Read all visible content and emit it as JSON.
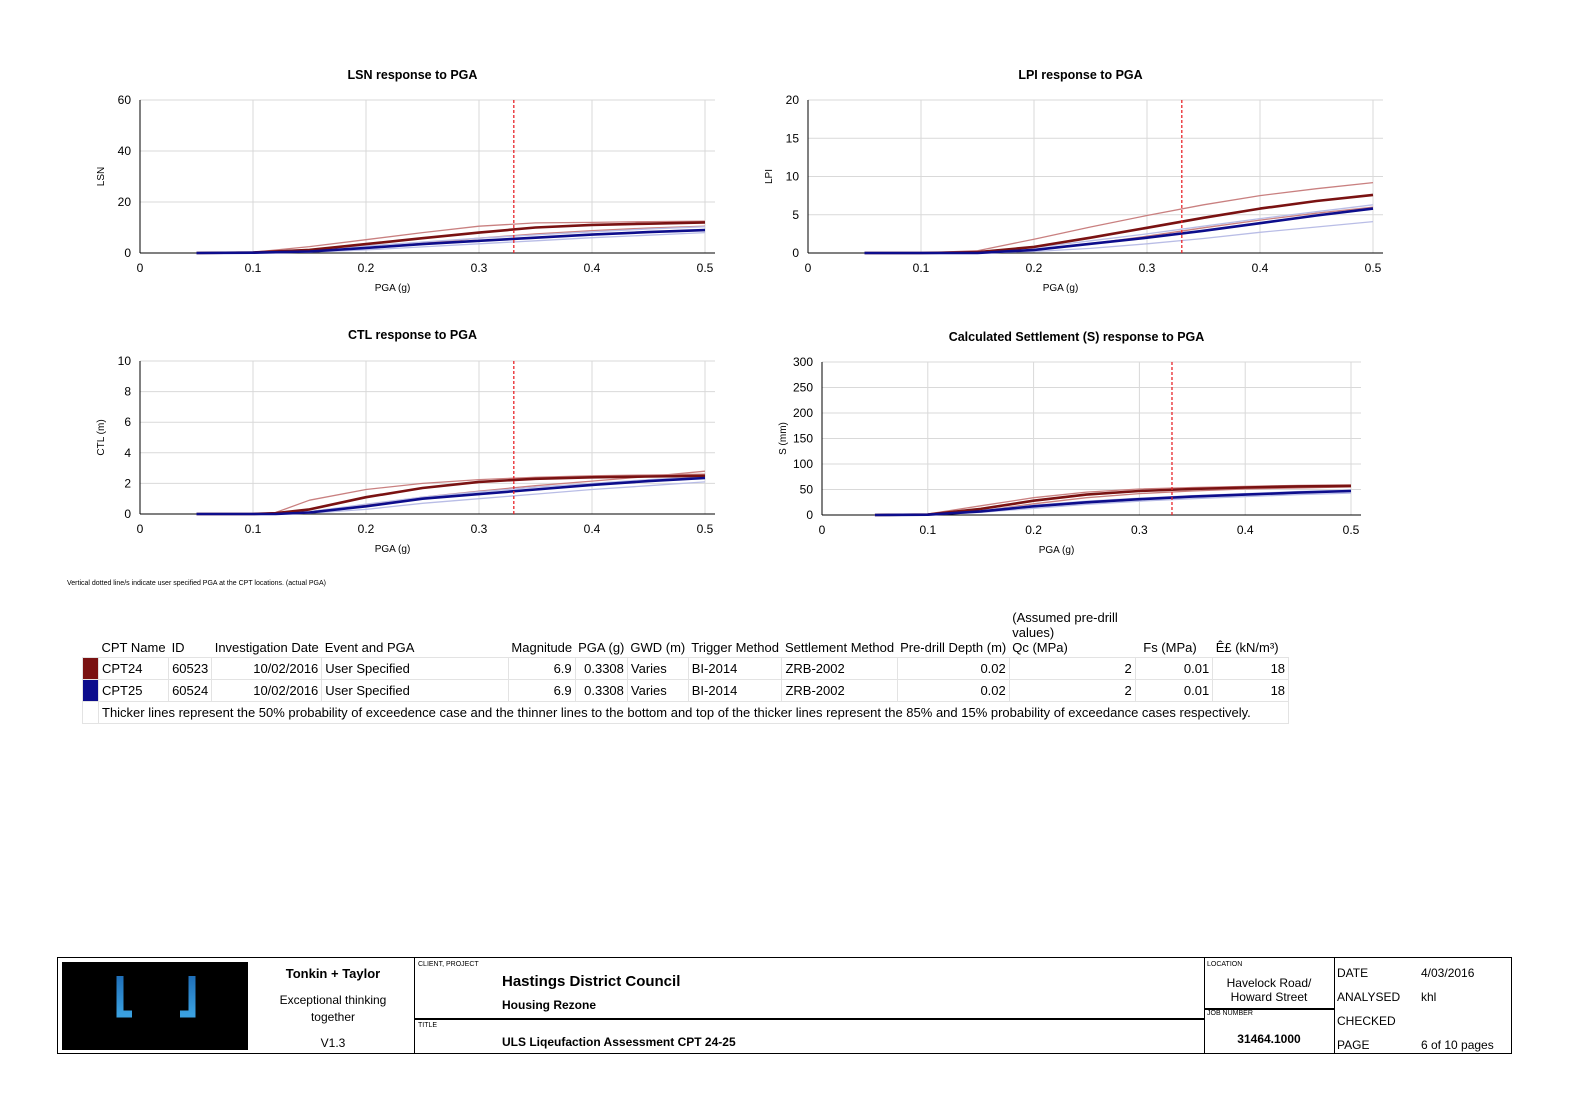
{
  "chart_data": [
    {
      "type": "line",
      "title": "LSN response to PGA",
      "xlabel": "PGA (g)",
      "ylabel": "LSN",
      "xlim": [
        0,
        0.5
      ],
      "ylim": [
        0,
        60
      ],
      "xticks": [
        "0",
        "0.1",
        "0.2",
        "0.3",
        "0.4",
        "0.5"
      ],
      "yticks": [
        "0",
        "20",
        "40",
        "60"
      ],
      "grid": true,
      "vline_x": 0.3308,
      "x": [
        0.05,
        0.1,
        0.15,
        0.2,
        0.25,
        0.3,
        0.35,
        0.4,
        0.45,
        0.5
      ],
      "series": [
        {
          "name": "CPT24",
          "level": "50%",
          "values": [
            0,
            0.2,
            1.2,
            3.5,
            5.8,
            8,
            10,
            11,
            11.5,
            12
          ]
        },
        {
          "name": "CPT24",
          "level": "15%",
          "values": [
            0,
            0.3,
            2.5,
            5.2,
            8,
            10.5,
            11.8,
            12,
            12.3,
            12.5
          ]
        },
        {
          "name": "CPT24",
          "level": "85%",
          "values": [
            0,
            0.1,
            0.6,
            2,
            3.8,
            5.8,
            7.5,
            8.8,
            9.8,
            10.5
          ]
        },
        {
          "name": "CPT25",
          "level": "50%",
          "values": [
            0,
            0.1,
            0.6,
            2,
            3.5,
            4.8,
            6,
            7.2,
            8.2,
            9
          ]
        },
        {
          "name": "CPT25",
          "level": "15%",
          "values": [
            0,
            0.2,
            1,
            2.8,
            4.3,
            5.8,
            7.1,
            8.3,
            9.4,
            10.3
          ]
        },
        {
          "name": "CPT25",
          "level": "85%",
          "values": [
            0,
            0.05,
            0.3,
            1.2,
            2.4,
            3.6,
            4.8,
            6,
            7,
            8
          ]
        }
      ]
    },
    {
      "type": "line",
      "title": "LPI response to PGA",
      "xlabel": "PGA (g)",
      "ylabel": "LPI",
      "xlim": [
        0,
        0.5
      ],
      "ylim": [
        0,
        20
      ],
      "xticks": [
        "0",
        "0.1",
        "0.2",
        "0.3",
        "0.4",
        "0.5"
      ],
      "yticks": [
        "0",
        "5",
        "10",
        "15",
        "20"
      ],
      "grid": true,
      "vline_x": 0.3308,
      "x": [
        0.05,
        0.1,
        0.15,
        0.2,
        0.25,
        0.3,
        0.35,
        0.4,
        0.45,
        0.5
      ],
      "series": [
        {
          "name": "CPT24",
          "level": "50%",
          "values": [
            0,
            0,
            0.1,
            0.8,
            2,
            3.3,
            4.6,
            5.8,
            6.8,
            7.6
          ]
        },
        {
          "name": "CPT24",
          "level": "15%",
          "values": [
            0,
            0,
            0.3,
            1.8,
            3.4,
            4.9,
            6.3,
            7.5,
            8.4,
            9.2
          ]
        },
        {
          "name": "CPT24",
          "level": "85%",
          "values": [
            0,
            0,
            0,
            0.4,
            1.2,
            2.2,
            3.3,
            4.3,
            5.2,
            6
          ]
        },
        {
          "name": "CPT25",
          "level": "50%",
          "values": [
            0,
            0,
            0,
            0.4,
            1.2,
            2,
            2.9,
            3.9,
            4.9,
            5.8
          ]
        },
        {
          "name": "CPT25",
          "level": "15%",
          "values": [
            0,
            0,
            0.1,
            0.7,
            1.6,
            2.5,
            3.5,
            4.5,
            5.4,
            6.3
          ]
        },
        {
          "name": "CPT25",
          "level": "85%",
          "values": [
            0,
            0,
            0,
            0.2,
            0.6,
            1.2,
            1.9,
            2.7,
            3.4,
            4.1
          ]
        }
      ]
    },
    {
      "type": "line",
      "title": "CTL response to PGA",
      "xlabel": "PGA (g)",
      "ylabel": "CTL (m)",
      "xlim": [
        0,
        0.5
      ],
      "ylim": [
        0,
        10
      ],
      "xticks": [
        "0",
        "0.1",
        "0.2",
        "0.3",
        "0.4",
        "0.5"
      ],
      "yticks": [
        "0",
        "2",
        "4",
        "6",
        "8",
        "10"
      ],
      "grid": true,
      "vline_x": 0.3308,
      "x": [
        0.05,
        0.1,
        0.12,
        0.15,
        0.2,
        0.25,
        0.3,
        0.35,
        0.4,
        0.45,
        0.5
      ],
      "series": [
        {
          "name": "CPT24",
          "level": "50%",
          "values": [
            0,
            0,
            0.05,
            0.3,
            1.1,
            1.7,
            2.1,
            2.3,
            2.4,
            2.45,
            2.5
          ]
        },
        {
          "name": "CPT24",
          "level": "15%",
          "values": [
            0,
            0,
            0.1,
            0.9,
            1.6,
            2,
            2.25,
            2.4,
            2.5,
            2.55,
            2.6
          ]
        },
        {
          "name": "CPT24",
          "level": "85%",
          "values": [
            0,
            0,
            0,
            0.15,
            0.6,
            1.1,
            1.5,
            1.85,
            2.15,
            2.45,
            2.8
          ]
        },
        {
          "name": "CPT25",
          "level": "50%",
          "values": [
            0,
            0,
            0,
            0.1,
            0.5,
            1,
            1.3,
            1.6,
            1.9,
            2.15,
            2.35
          ]
        },
        {
          "name": "CPT25",
          "level": "15%",
          "values": [
            0,
            0,
            0,
            0.15,
            0.65,
            1.1,
            1.45,
            1.75,
            2,
            2.25,
            2.45
          ]
        },
        {
          "name": "CPT25",
          "level": "85%",
          "values": [
            0,
            0,
            0,
            0.05,
            0.3,
            0.7,
            1,
            1.3,
            1.6,
            1.85,
            2.1
          ]
        }
      ]
    },
    {
      "type": "line",
      "title": "Calculated Settlement (S) response to PGA",
      "xlabel": "PGA (g)",
      "ylabel": "S (mm)",
      "xlim": [
        0,
        0.5
      ],
      "ylim": [
        0,
        300
      ],
      "xticks": [
        "0",
        "0.1",
        "0.2",
        "0.3",
        "0.4",
        "0.5"
      ],
      "yticks": [
        "0",
        "50",
        "100",
        "150",
        "200",
        "250",
        "300"
      ],
      "grid": true,
      "vline_x": 0.3308,
      "x": [
        0.05,
        0.1,
        0.15,
        0.2,
        0.25,
        0.3,
        0.35,
        0.4,
        0.45,
        0.5
      ],
      "series": [
        {
          "name": "CPT24",
          "level": "50%",
          "values": [
            0,
            1,
            12,
            28,
            40,
            47,
            51,
            54,
            56,
            57
          ]
        },
        {
          "name": "CPT24",
          "level": "15%",
          "values": [
            0,
            2,
            18,
            34,
            45,
            51,
            54,
            56,
            58,
            59
          ]
        },
        {
          "name": "CPT24",
          "level": "85%",
          "values": [
            0,
            0.5,
            8,
            22,
            34,
            42,
            47,
            51,
            53,
            55
          ]
        },
        {
          "name": "CPT25",
          "level": "50%",
          "values": [
            0,
            0.5,
            7,
            17,
            25,
            31,
            36,
            40,
            44,
            47
          ]
        },
        {
          "name": "CPT25",
          "level": "15%",
          "values": [
            0,
            1,
            9,
            19,
            27,
            33,
            38,
            42,
            46,
            49
          ]
        },
        {
          "name": "CPT25",
          "level": "85%",
          "values": [
            0,
            0.3,
            5,
            13,
            21,
            27,
            32,
            36,
            40,
            43
          ]
        }
      ]
    }
  ],
  "colors": {
    "CPT24": "#7a1212",
    "CPT24_thin": "#c98080",
    "CPT25": "#0d0d8c",
    "CPT25_thin": "#b9bde6",
    "vline": "#e8262b",
    "grid": "#d9d9d9"
  },
  "note": "Vertical dotted line/s indicate user specified PGA at the CPT locations. (actual PGA)",
  "table": {
    "assumed": "(Assumed pre-drill values)",
    "headers": [
      "CPT Name",
      "ID",
      "Investigation Date",
      "Event and PGA",
      "Magnitude",
      "PGA (g)",
      "GWD (m)",
      "Trigger Method",
      "Settlement Method",
      "Pre-drill Depth (m)",
      "Qc (MPa)",
      "Fs (MPa)",
      "Ê£ (kN/m³)"
    ],
    "rows": [
      {
        "color": "#7a1212",
        "cells": [
          "CPT24",
          "60523",
          "10/02/2016",
          "User Specified",
          "6.9",
          "0.3308",
          "Varies",
          "BI-2014",
          "ZRB-2002",
          "0.02",
          "2",
          "0.01",
          "18"
        ]
      },
      {
        "color": "#0d0d8c",
        "cells": [
          "CPT25",
          "60524",
          "10/02/2016",
          "User Specified",
          "6.9",
          "0.3308",
          "Varies",
          "BI-2014",
          "ZRB-2002",
          "0.02",
          "2",
          "0.01",
          "18"
        ]
      }
    ],
    "footnote": "Thicker lines represent the 50% probability of exceedence case and the thinner lines to the bottom and top of the thicker lines represent the 85% and 15% probability of exceedance cases respectively."
  },
  "titleblock": {
    "company": "Tonkin + Taylor",
    "tagline": "Exceptional thinking together",
    "version": "V1.3",
    "client_label": "CLIENT, PROJECT",
    "client": "Hastings District Council",
    "project": "Housing Rezone",
    "title_label": "TITLE",
    "title": "ULS Liqeufaction Assessment CPT 24-25",
    "location_label": "LOCATION",
    "location": "Havelock Road/ Howard Street",
    "job_label": "JOB NUMBER",
    "job": "31464.1000",
    "date_label": "DATE",
    "date": "4/03/2016",
    "analysed_label": "ANALYSED",
    "analysed": "khl",
    "checked_label": "CHECKED",
    "page_label": "PAGE",
    "page": "6 of 10 pages"
  }
}
